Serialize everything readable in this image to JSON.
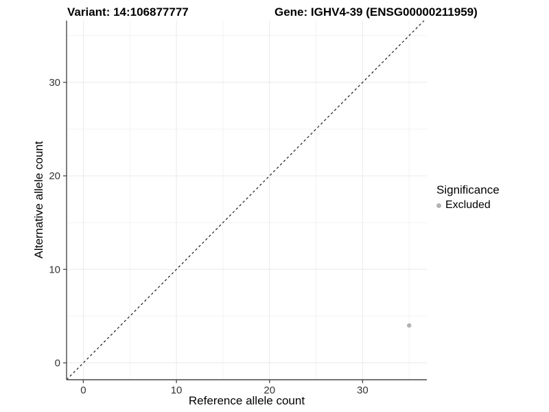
{
  "header": {
    "title_left": "Variant: 14:106877777",
    "title_right": "Gene: IGHV4-39 (ENSG00000211959)"
  },
  "chart_data": {
    "type": "scatter",
    "xlabel": "Reference allele count",
    "ylabel": "Alternative allele count",
    "xlim": [
      -1.8,
      36.9
    ],
    "ylim": [
      -1.8,
      36.6
    ],
    "x_major_ticks": [
      0,
      10,
      20,
      30
    ],
    "y_major_ticks": [
      0,
      10,
      20,
      30
    ],
    "x_minor_ticks": [
      5,
      15,
      25,
      35
    ],
    "y_minor_ticks": [
      5,
      15,
      25,
      35
    ],
    "grid": "major+minor",
    "identity_line": {
      "equation": "y = x",
      "style": "dashed",
      "color": "#1a1a1a"
    },
    "series": [
      {
        "name": "Excluded",
        "color": "#b3b3b3",
        "points": [
          {
            "x": 35,
            "y": 4
          }
        ]
      }
    ],
    "legend": {
      "title": "Significance",
      "position": "right",
      "items": [
        {
          "label": "Excluded",
          "color": "#b3b3b3"
        }
      ]
    }
  },
  "colors": {
    "background": "#ffffff",
    "axis_line": "#474747",
    "tick_mark": "#474747",
    "tick_label": "#333333",
    "grid_major": "#e9e9e9",
    "grid_minor": "#f2f2f2",
    "title": "#000000"
  }
}
